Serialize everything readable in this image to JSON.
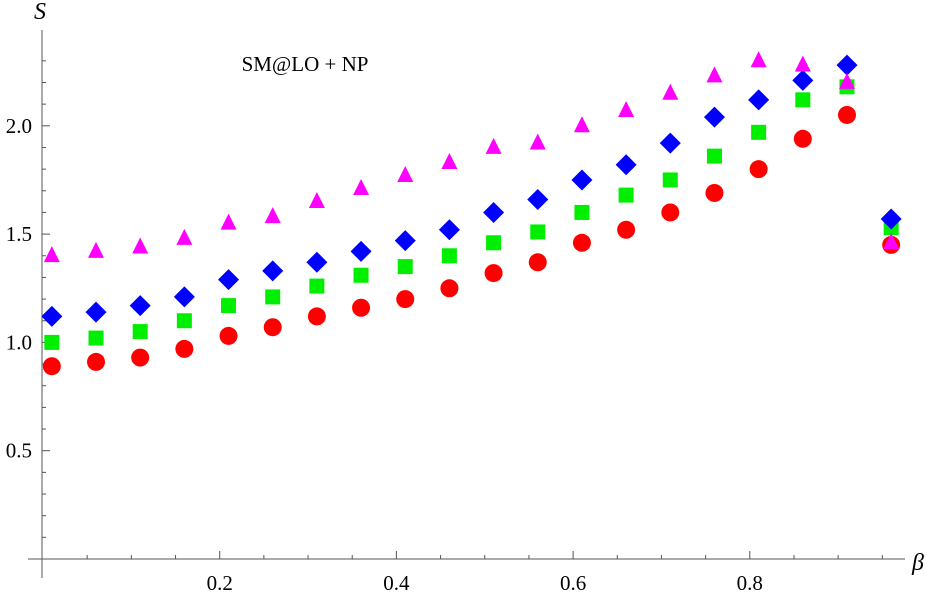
{
  "chart_data": {
    "type": "scatter",
    "xlabel": "β",
    "ylabel": "S",
    "annotation": "SM@LO + NP",
    "xlim": [
      0,
      0.97
    ],
    "ylim": [
      0,
      2.35
    ],
    "x_ticks": [
      0.2,
      0.4,
      0.6,
      0.8
    ],
    "x_tick_labels": [
      "0.2",
      "0.4",
      "0.6",
      "0.8"
    ],
    "y_ticks": [
      0.5,
      1.0,
      1.5,
      2.0
    ],
    "y_tick_labels": [
      "0.5",
      "1.0",
      "1.5",
      "2.0"
    ],
    "grid": false,
    "x": [
      0.01,
      0.06,
      0.11,
      0.16,
      0.21,
      0.26,
      0.31,
      0.36,
      0.41,
      0.46,
      0.51,
      0.56,
      0.61,
      0.66,
      0.71,
      0.76,
      0.81,
      0.86,
      0.91,
      0.96
    ],
    "series": [
      {
        "marker": "circle",
        "color": "#ff0000",
        "values": [
          0.89,
          0.91,
          0.93,
          0.97,
          1.03,
          1.07,
          1.12,
          1.16,
          1.2,
          1.25,
          1.32,
          1.37,
          1.46,
          1.52,
          1.6,
          1.69,
          1.8,
          1.94,
          2.05,
          1.45
        ]
      },
      {
        "marker": "square",
        "color": "#00ee00",
        "values": [
          1.0,
          1.02,
          1.05,
          1.1,
          1.17,
          1.21,
          1.26,
          1.31,
          1.35,
          1.4,
          1.46,
          1.51,
          1.6,
          1.68,
          1.75,
          1.86,
          1.97,
          2.12,
          2.18,
          1.53
        ]
      },
      {
        "marker": "diamond",
        "color": "#0000ff",
        "values": [
          1.12,
          1.14,
          1.17,
          1.21,
          1.29,
          1.33,
          1.37,
          1.42,
          1.47,
          1.52,
          1.6,
          1.66,
          1.75,
          1.82,
          1.92,
          2.04,
          2.12,
          2.21,
          2.28,
          1.57
        ]
      },
      {
        "marker": "triangle",
        "color": "#ff00ff",
        "values": [
          1.4,
          1.42,
          1.44,
          1.48,
          1.55,
          1.58,
          1.65,
          1.71,
          1.77,
          1.83,
          1.9,
          1.92,
          2.0,
          2.07,
          2.15,
          2.23,
          2.3,
          2.28,
          2.2,
          1.46
        ]
      }
    ]
  }
}
